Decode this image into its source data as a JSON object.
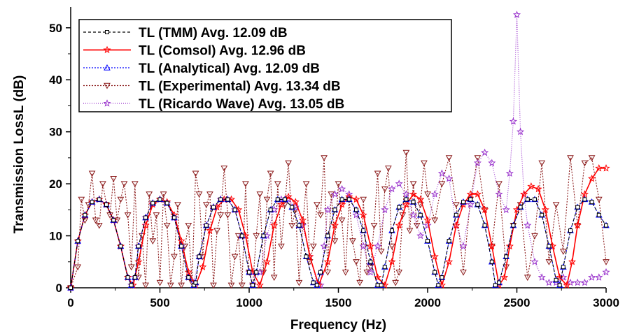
{
  "chart_data": {
    "type": "line",
    "xlabel": "Frequency (Hz)",
    "ylabel": "Transmission LossL (dB)",
    "xlim": [
      0,
      3000
    ],
    "ylim": [
      0,
      54
    ],
    "xticks": [
      0,
      500,
      1000,
      1500,
      2000,
      2500,
      3000
    ],
    "yticks": [
      0,
      10,
      20,
      30,
      40,
      50
    ],
    "legend_position": "top-left",
    "series": [
      {
        "name": "TL (TMM) Avg. 12.09 dB",
        "color": "#000000",
        "dash": "4,3",
        "marker": "square",
        "x": [
          0,
          40,
          80,
          120,
          160,
          200,
          240,
          280,
          320,
          340,
          360,
          380,
          420,
          460,
          500,
          540,
          580,
          620,
          660,
          690,
          700,
          720,
          760,
          800,
          840,
          880,
          920,
          960,
          1000,
          1020,
          1040,
          1080,
          1120,
          1160,
          1200,
          1240,
          1280,
          1320,
          1360,
          1380,
          1400,
          1440,
          1480,
          1520,
          1560,
          1600,
          1640,
          1680,
          1720,
          1740,
          1760,
          1800,
          1840,
          1880,
          1920,
          1960,
          2000,
          2040,
          2060,
          2080,
          2120,
          2160,
          2200,
          2240,
          2280,
          2320,
          2360,
          2380,
          2400,
          2440,
          2480,
          2520,
          2560,
          2600,
          2640,
          2680,
          2720,
          2740,
          2760,
          2800,
          2840,
          2880,
          2920,
          2960,
          3000
        ],
        "y": [
          0,
          9,
          14,
          16.5,
          17,
          16,
          13,
          8,
          2,
          0.5,
          2,
          8,
          13.5,
          16.3,
          17,
          16.3,
          13.5,
          8,
          2,
          0.5,
          1,
          6,
          12,
          15.5,
          17,
          17,
          15,
          10,
          3,
          0.5,
          3,
          10,
          15,
          17,
          17,
          15.5,
          12,
          6,
          1,
          0.5,
          3,
          10,
          15,
          17,
          17,
          15,
          11,
          5,
          0.5,
          0.5,
          4,
          11,
          15.5,
          17,
          16.5,
          14,
          9,
          3,
          0.5,
          2,
          9,
          14,
          16.5,
          17,
          16,
          12,
          5,
          0.5,
          1,
          6,
          12,
          15.5,
          17,
          17,
          14,
          8,
          1.5,
          0.5,
          4,
          11,
          15.5,
          17,
          16.5,
          14,
          12
        ]
      },
      {
        "name": "TL (Comsol) Avg. 12.96 dB",
        "color": "#ff0000",
        "dash": "",
        "marker": "star",
        "x": [
          0,
          40,
          80,
          120,
          160,
          200,
          240,
          280,
          320,
          350,
          380,
          420,
          460,
          500,
          540,
          580,
          620,
          660,
          700,
          740,
          780,
          820,
          860,
          900,
          940,
          980,
          1020,
          1060,
          1100,
          1140,
          1180,
          1220,
          1260,
          1300,
          1340,
          1390,
          1440,
          1480,
          1520,
          1560,
          1600,
          1640,
          1680,
          1720,
          1760,
          1800,
          1840,
          1880,
          1920,
          1960,
          2000,
          2040,
          2080,
          2120,
          2160,
          2200,
          2240,
          2280,
          2320,
          2360,
          2400,
          2430,
          2460,
          2500,
          2540,
          2580,
          2620,
          2660,
          2700,
          2740,
          2780,
          2810,
          2840,
          2880,
          2920,
          2960,
          3000
        ],
        "y": [
          0,
          9,
          14,
          16.5,
          17,
          16,
          13,
          8,
          2,
          0.5,
          5,
          12,
          16,
          17,
          16.5,
          14,
          9,
          3,
          0.5,
          4,
          11,
          15.5,
          17,
          17,
          15,
          10,
          3,
          0.5,
          5,
          12,
          16,
          17.5,
          16.5,
          13,
          6,
          0.5,
          5,
          12,
          16,
          17.5,
          17,
          14,
          8,
          2,
          0.5,
          5,
          12,
          16,
          18,
          17,
          13,
          6,
          0.5,
          5,
          12,
          16,
          18,
          18,
          15,
          8,
          0.5,
          2,
          8,
          15,
          18,
          19.5,
          19,
          15,
          8,
          2,
          0.5,
          5,
          12,
          18,
          21,
          23,
          23
        ]
      },
      {
        "name": "TL (Analytical) Avg. 12.09 dB",
        "color": "#0000ff",
        "dash": "2,2",
        "marker": "triangle-up",
        "x": [
          0,
          40,
          80,
          120,
          160,
          200,
          240,
          280,
          320,
          340,
          360,
          380,
          420,
          460,
          500,
          540,
          580,
          620,
          660,
          690,
          700,
          720,
          760,
          800,
          840,
          880,
          920,
          960,
          1000,
          1020,
          1040,
          1080,
          1120,
          1160,
          1200,
          1240,
          1280,
          1320,
          1360,
          1380,
          1400,
          1440,
          1480,
          1520,
          1560,
          1600,
          1640,
          1680,
          1720,
          1740,
          1760,
          1800,
          1840,
          1880,
          1920,
          1960,
          2000,
          2040,
          2060,
          2080,
          2120,
          2160,
          2200,
          2240,
          2280,
          2320,
          2360,
          2380,
          2400,
          2440,
          2480,
          2520,
          2560,
          2600,
          2640,
          2680,
          2720,
          2740,
          2760,
          2800,
          2840,
          2880,
          2920,
          2960,
          3000
        ],
        "y": [
          0,
          9,
          14,
          16.5,
          17,
          16,
          13,
          8,
          2,
          0.5,
          2,
          8,
          13.5,
          16.3,
          17,
          16.3,
          13.5,
          8,
          2,
          0.5,
          1,
          6,
          12,
          15.5,
          17,
          17,
          15,
          10,
          3,
          0.5,
          3,
          10,
          15,
          17,
          17,
          15.5,
          12,
          6,
          1,
          0.5,
          3,
          10,
          15,
          17,
          17,
          15,
          11,
          5,
          0.5,
          0.5,
          4,
          11,
          15.5,
          17,
          16.5,
          14,
          9,
          3,
          0.5,
          2,
          9,
          14,
          16.5,
          17,
          16,
          12,
          5,
          0.5,
          1,
          6,
          12,
          15.5,
          17,
          17,
          14,
          8,
          1.5,
          0.5,
          4,
          11,
          15.5,
          17,
          16.5,
          14,
          12
        ]
      },
      {
        "name": "TL (Experimental) Avg. 13.34 dB",
        "color": "#8b1a1a",
        "dash": "2,2",
        "marker": "triangle-down",
        "x": [
          0,
          40,
          60,
          80,
          100,
          120,
          140,
          160,
          180,
          200,
          220,
          240,
          260,
          280,
          300,
          320,
          340,
          360,
          380,
          400,
          420,
          440,
          460,
          480,
          500,
          520,
          540,
          560,
          580,
          600,
          620,
          640,
          660,
          680,
          700,
          720,
          740,
          760,
          780,
          800,
          820,
          840,
          860,
          880,
          900,
          920,
          940,
          960,
          980,
          1000,
          1020,
          1040,
          1060,
          1080,
          1100,
          1120,
          1140,
          1160,
          1180,
          1200,
          1220,
          1240,
          1260,
          1280,
          1300,
          1320,
          1340,
          1360,
          1380,
          1400,
          1420,
          1440,
          1460,
          1480,
          1500,
          1520,
          1540,
          1560,
          1580,
          1600,
          1620,
          1640,
          1660,
          1680,
          1700,
          1720,
          1740,
          1760,
          1780,
          1800,
          1820,
          1840,
          1860,
          1880,
          1900,
          1920,
          1940,
          1960,
          1980,
          2000,
          2040,
          2080,
          2120,
          2160,
          2200,
          2240,
          2280,
          2320,
          2360,
          2400,
          2440,
          2480,
          2520,
          2560,
          2600,
          2640,
          2680,
          2720,
          2760,
          2800,
          2840,
          2880,
          2920,
          2960,
          3000
        ],
        "y": [
          0,
          4,
          17,
          13,
          16,
          22,
          13,
          12,
          20,
          16,
          14,
          21,
          13,
          17,
          20,
          14,
          4,
          20,
          2,
          10,
          0.5,
          18,
          9,
          14,
          1,
          18,
          12,
          0.5,
          6,
          16,
          0.5,
          8,
          12,
          1,
          22,
          18,
          6,
          16,
          18,
          0.5,
          11,
          14,
          23,
          14,
          0.5,
          6,
          10,
          0.5,
          20,
          3,
          0.5,
          10,
          18,
          3,
          17,
          22,
          2,
          20,
          8,
          16,
          24,
          12,
          15,
          1,
          12,
          20,
          5,
          8,
          16,
          14,
          25,
          3,
          18,
          9,
          20,
          13,
          3,
          17,
          9,
          5,
          1,
          17,
          3,
          4,
          12,
          22,
          7,
          19,
          23,
          8,
          1,
          3,
          14,
          26,
          11,
          20,
          12,
          16,
          24,
          18,
          13,
          20,
          25,
          16,
          3,
          17,
          25,
          15,
          8,
          20,
          4,
          12,
          16,
          2,
          10,
          24,
          5,
          16,
          7,
          25,
          12,
          24,
          25,
          17,
          5
        ]
      },
      {
        "name": "TL (Ricardo Wave) Avg. 13.05 dB",
        "color": "#9932cc",
        "dash": "1,2",
        "marker": "star",
        "x": [
          0,
          40,
          80,
          120,
          160,
          200,
          240,
          280,
          320,
          340,
          360,
          380,
          420,
          460,
          500,
          540,
          580,
          620,
          660,
          690,
          720,
          760,
          800,
          840,
          880,
          920,
          960,
          1000,
          1020,
          1060,
          1100,
          1140,
          1180,
          1220,
          1260,
          1300,
          1340,
          1380,
          1400,
          1420,
          1440,
          1480,
          1520,
          1560,
          1600,
          1640,
          1680,
          1720,
          1760,
          1800,
          1840,
          1880,
          1920,
          1960,
          2000,
          2040,
          2080,
          2120,
          2160,
          2200,
          2240,
          2280,
          2320,
          2360,
          2400,
          2440,
          2460,
          2480,
          2500,
          2520,
          2540,
          2560,
          2600,
          2640,
          2680,
          2720,
          2760,
          2800,
          2840,
          2880,
          2920,
          2960,
          3000
        ],
        "y": [
          0,
          9,
          14,
          16.5,
          17,
          16,
          13,
          8,
          2,
          0.5,
          2,
          8,
          13.5,
          16.3,
          17,
          16.3,
          13.5,
          8,
          2,
          1,
          6,
          12,
          15.5,
          17,
          17,
          15,
          10,
          3,
          0.5,
          3,
          10,
          15,
          17,
          17,
          15.5,
          12,
          6,
          1,
          0.5,
          8,
          15,
          18,
          19,
          18,
          14,
          8,
          3,
          8,
          15,
          19,
          20,
          18,
          14,
          10,
          12,
          18,
          22,
          21,
          12,
          8,
          16,
          24,
          26,
          24,
          18,
          15,
          22,
          32,
          52.5,
          30,
          18,
          12,
          5,
          2,
          1,
          1,
          2,
          1,
          1,
          1,
          2,
          2,
          3
        ]
      }
    ]
  }
}
